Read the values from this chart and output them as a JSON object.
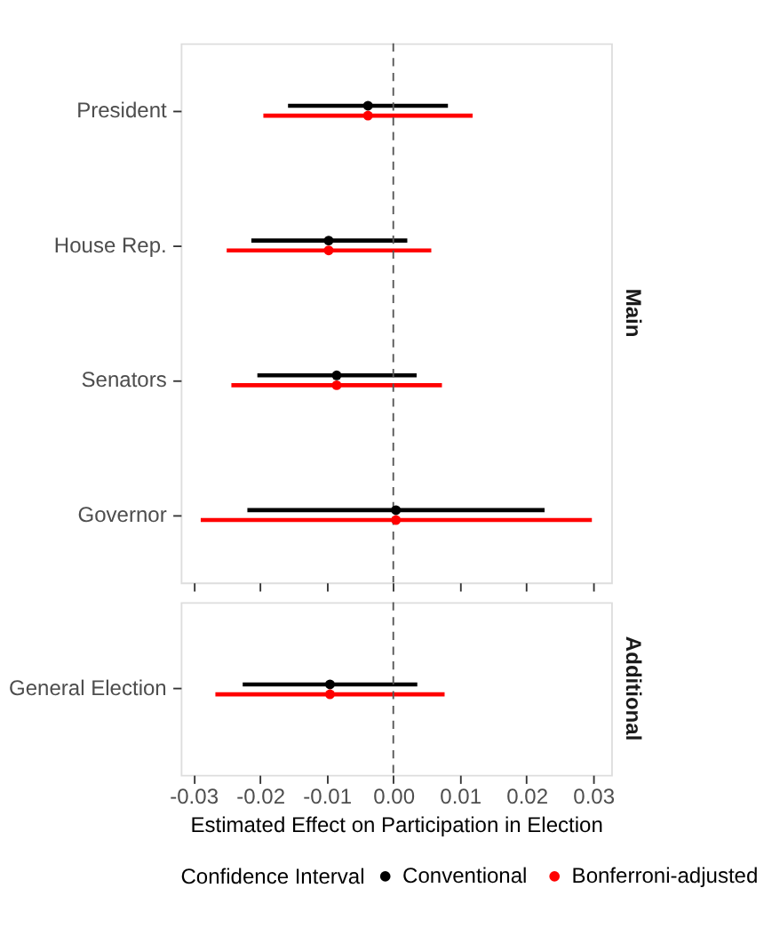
{
  "chart_data": [
    {
      "type": "scatter",
      "title": "Main",
      "orientation": "horizontal",
      "categories": [
        "President",
        "House Rep.",
        "Senators",
        "Governor"
      ],
      "xlim": [
        -0.0319,
        0.0327
      ],
      "xticks": [
        -0.03,
        -0.02,
        -0.01,
        0,
        0.01,
        0.02,
        0.03
      ],
      "tick_labels": "y",
      "grid": false,
      "marker": "circle",
      "ref_lines": [
        {
          "axis": "x",
          "value": 0,
          "line_style": "dashed",
          "color": "#555555"
        }
      ],
      "series": [
        {
          "color": "#000000",
          "values": [
            -0.0038,
            -0.0097,
            -0.0085,
            0.0004
          ],
          "errors": [
            [
              -0.0158,
              0.0082
            ],
            [
              -0.0213,
              0.0021
            ],
            [
              -0.0204,
              0.0035
            ],
            [
              -0.0219,
              0.0227
            ]
          ]
        },
        {
          "color": "#ff0000",
          "values": [
            -0.0038,
            -0.0097,
            -0.0085,
            0.0004
          ],
          "errors": [
            [
              -0.0195,
              0.0119
            ],
            [
              -0.025,
              0.0057
            ],
            [
              -0.0243,
              0.0073
            ],
            [
              -0.0289,
              0.0298
            ]
          ]
        }
      ]
    },
    {
      "type": "scatter",
      "title": "Additional",
      "orientation": "horizontal",
      "categories": [
        "General Election"
      ],
      "xlim": [
        -0.0319,
        0.0327
      ],
      "xticks": [
        -0.03,
        -0.02,
        -0.01,
        {
          "value": 0,
          "label": "0.00"
        },
        0.01,
        0.02,
        0.03
      ],
      "xlabel": "Estimated Effect on Participation in Election",
      "legend_title": "Confidence Interval",
      "grid": false,
      "legend": "bottom",
      "marker": "circle",
      "ref_lines": [
        {
          "axis": "x",
          "value": 0,
          "line_style": "dashed",
          "color": "#555555"
        }
      ],
      "series": [
        {
          "name": "Conventional",
          "color": "#000000",
          "values": [
            -0.0095
          ],
          "errors": [
            [
              -0.0226,
              0.0036
            ]
          ]
        },
        {
          "name": "Bonferroni-adjusted",
          "color": "#ff0000",
          "values": [
            -0.0095
          ],
          "errors": [
            [
              -0.0267,
              0.0077
            ]
          ]
        }
      ]
    }
  ]
}
